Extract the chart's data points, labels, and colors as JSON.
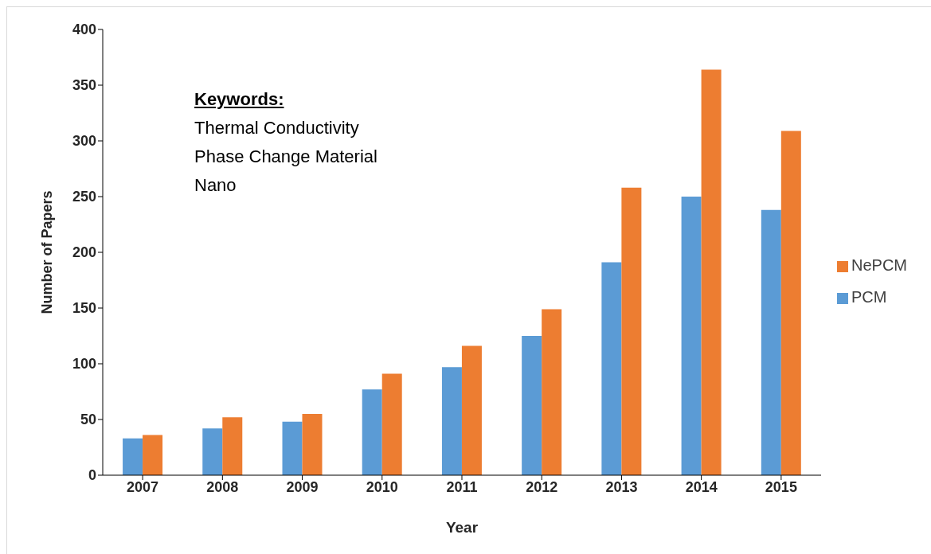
{
  "chart_data": {
    "type": "bar",
    "xlabel": "Year",
    "ylabel": "Number of Papers",
    "categories": [
      "2007",
      "2008",
      "2009",
      "2010",
      "2011",
      "2012",
      "2013",
      "2014",
      "2015"
    ],
    "series": [
      {
        "name": "PCM",
        "color": "#5b9bd5",
        "values": [
          33,
          42,
          48,
          77,
          97,
          125,
          191,
          250,
          238
        ]
      },
      {
        "name": "NePCM",
        "color": "#ed7d31",
        "values": [
          36,
          52,
          55,
          91,
          116,
          149,
          258,
          364,
          309
        ]
      }
    ],
    "ylim": [
      0,
      400
    ],
    "yticks": [
      0,
      50,
      100,
      150,
      200,
      250,
      300,
      350,
      400
    ],
    "grid": false,
    "legend": "right",
    "annotations": [
      "Keywords:",
      "Thermal Conductivity",
      "Phase Change Material",
      "Nano"
    ]
  }
}
